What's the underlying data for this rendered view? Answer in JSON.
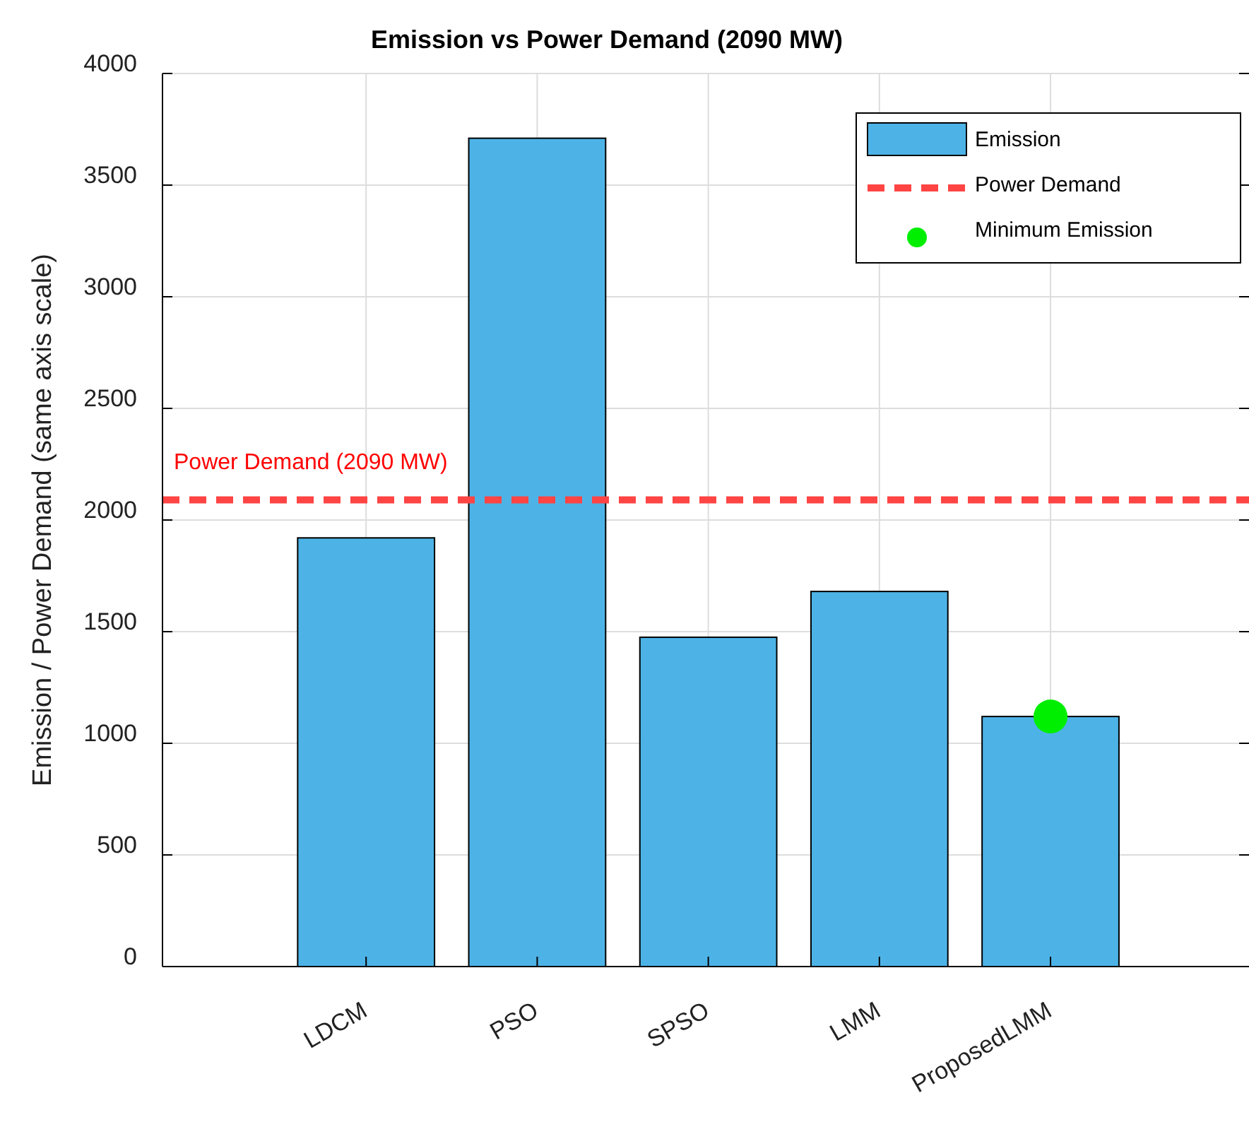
{
  "chart_data": {
    "type": "bar",
    "title": "Emission vs Power Demand (2090 MW)",
    "ylabel": "Emission / Power Demand (same axis scale)",
    "categories": [
      "LDCM",
      "PSO",
      "SPSO",
      "LMM",
      "ProposedLMM"
    ],
    "series": [
      {
        "name": "Emission",
        "color": "#4db3e6",
        "values": [
          1920,
          3710,
          1475,
          1680,
          1120
        ]
      },
      {
        "name": "Minimum Emission",
        "type": "scatter",
        "color": "#00ee00",
        "marker": "circle",
        "x": [
          "ProposedLMM"
        ],
        "values": [
          1120
        ]
      }
    ],
    "ref_lines": [
      {
        "axis": "y",
        "value": 2090,
        "label": "Power Demand",
        "color": "#ff4444",
        "line_style": "dashed"
      }
    ],
    "annotations": [
      {
        "text": "Power Demand (2090 MW)",
        "y": 2090
      }
    ],
    "ylim": [
      0,
      4000
    ],
    "yticks": [
      0,
      500,
      1000,
      1500,
      2000,
      2500,
      3000,
      3500,
      4000
    ],
    "grid": true,
    "legend": "top right"
  }
}
